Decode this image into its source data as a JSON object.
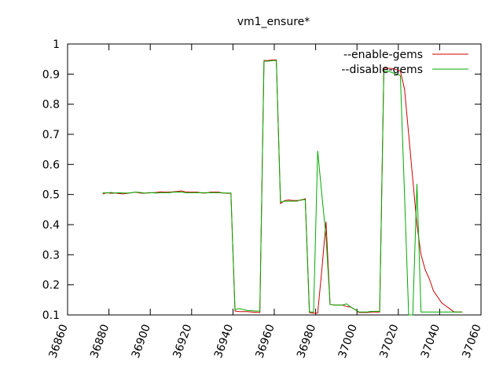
{
  "chart_data": {
    "type": "line",
    "title": "vm1_ensure*",
    "xlabel": "",
    "ylabel": "",
    "xlim": [
      36860,
      37060
    ],
    "ylim": [
      0.1,
      1.0
    ],
    "xticks": [
      36860,
      36880,
      36900,
      36920,
      36940,
      36960,
      36980,
      37000,
      37020,
      37040,
      37060
    ],
    "yticks": [
      0.1,
      0.2,
      0.3,
      0.4,
      0.5,
      0.6,
      0.7,
      0.8,
      0.9,
      1.0
    ],
    "ytick_labels": [
      "0.1",
      "0.2",
      "0.3",
      "0.4",
      "0.5",
      "0.6",
      "0.7",
      "0.8",
      "0.9",
      "1"
    ],
    "grid": false,
    "legend_position": "top-right",
    "series": [
      {
        "name": "--enable-gems",
        "color": "#cc0000",
        "x": [
          36877,
          36879,
          36881,
          36883,
          36885,
          36887,
          36889,
          36891,
          36893,
          36895,
          36897,
          36899,
          36901,
          36903,
          36905,
          36907,
          36909,
          36911,
          36913,
          36915,
          36917,
          36919,
          36921,
          36923,
          36925,
          36927,
          36929,
          36931,
          36933,
          36935,
          36937,
          36939,
          36941,
          36943,
          36945,
          36947,
          36949,
          36951,
          36953,
          36955,
          36957,
          36959,
          36961,
          36963,
          36965,
          36967,
          36969,
          36971,
          36973,
          36975,
          36977,
          36979,
          36981,
          36983,
          36985,
          36987,
          36989,
          36991,
          36993,
          36995,
          36997,
          36999,
          37001,
          37003,
          37005,
          37007,
          37009,
          37011,
          37013,
          37015,
          37017,
          37019,
          37021,
          37023,
          37025,
          37027,
          37029,
          37031,
          37033,
          37035,
          37037,
          37039,
          37041,
          37043,
          37045,
          37047,
          37049,
          37051
        ],
        "values": [
          0.502,
          0.506,
          0.504,
          0.505,
          0.503,
          0.502,
          0.504,
          0.506,
          0.508,
          0.505,
          0.504,
          0.506,
          0.506,
          0.507,
          0.509,
          0.508,
          0.508,
          0.509,
          0.51,
          0.512,
          0.509,
          0.508,
          0.508,
          0.508,
          0.505,
          0.505,
          0.508,
          0.508,
          0.508,
          0.505,
          0.504,
          0.504,
          0.113,
          0.111,
          0.111,
          0.111,
          0.11,
          0.109,
          0.108,
          0.945,
          0.945,
          0.947,
          0.947,
          0.47,
          0.48,
          0.482,
          0.48,
          0.48,
          0.481,
          0.486,
          0.108,
          0.106,
          0.106,
          0.25,
          0.41,
          0.135,
          0.133,
          0.133,
          0.133,
          0.128,
          0.126,
          0.118,
          0.108,
          0.108,
          0.108,
          0.11,
          0.11,
          0.11,
          0.92,
          0.92,
          0.918,
          0.915,
          0.91,
          0.85,
          0.7,
          0.55,
          0.4,
          0.3,
          0.25,
          0.22,
          0.18,
          0.16,
          0.14,
          0.13,
          0.12,
          0.11,
          0.11,
          0.11
        ]
      },
      {
        "name": "--disable-gems",
        "color": "#00aa00",
        "x": [
          36877,
          36879,
          36881,
          36883,
          36885,
          36887,
          36889,
          36891,
          36893,
          36895,
          36897,
          36899,
          36901,
          36903,
          36905,
          36907,
          36909,
          36911,
          36913,
          36915,
          36917,
          36919,
          36921,
          36923,
          36925,
          36927,
          36929,
          36931,
          36933,
          36935,
          36937,
          36939,
          36941,
          36943,
          36945,
          36947,
          36949,
          36951,
          36953,
          36955,
          36957,
          36959,
          36961,
          36963,
          36965,
          36967,
          36969,
          36971,
          36973,
          36975,
          36977,
          36979,
          36981,
          36983,
          36985,
          36987,
          36989,
          36991,
          36993,
          36995,
          36997,
          36999,
          37001,
          37003,
          37005,
          37007,
          37009,
          37011,
          37013,
          37015,
          37017,
          37019,
          37021,
          37023,
          37025,
          37027,
          37029,
          37031,
          37033,
          37035,
          37037,
          37039,
          37041,
          37043,
          37045,
          37047,
          37049,
          37051
        ],
        "values": [
          0.506,
          0.505,
          0.507,
          0.505,
          0.506,
          0.505,
          0.505,
          0.506,
          0.508,
          0.507,
          0.505,
          0.505,
          0.506,
          0.505,
          0.506,
          0.506,
          0.506,
          0.508,
          0.508,
          0.508,
          0.506,
          0.506,
          0.506,
          0.506,
          0.506,
          0.506,
          0.506,
          0.506,
          0.506,
          0.505,
          0.505,
          0.505,
          0.118,
          0.121,
          0.118,
          0.115,
          0.114,
          0.113,
          0.113,
          0.943,
          0.943,
          0.945,
          0.945,
          0.475,
          0.478,
          0.478,
          0.478,
          0.478,
          0.483,
          0.483,
          0.11,
          0.11,
          0.645,
          0.5,
          0.36,
          0.135,
          0.133,
          0.133,
          0.133,
          0.137,
          0.126,
          0.118,
          0.11,
          0.11,
          0.11,
          0.112,
          0.112,
          0.112,
          0.91,
          0.91,
          0.905,
          0.9,
          0.895,
          0.5,
          0.1,
          0.1,
          0.535,
          0.11,
          0.11,
          0.11,
          0.11,
          0.11,
          0.11,
          0.11,
          0.11,
          0.11,
          0.11,
          0.11
        ]
      }
    ]
  }
}
